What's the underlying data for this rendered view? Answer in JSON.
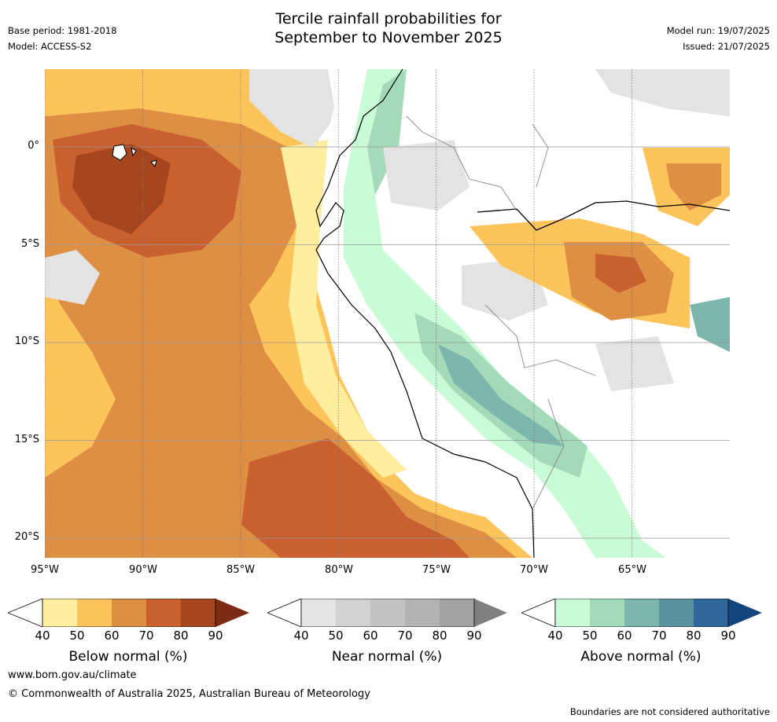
{
  "header": {
    "title_line1": "Tercile rainfall probabilities for",
    "title_line2": "September to November 2025",
    "base_period": "Base period: 1981-2018",
    "model": "Model: ACCESS-S2",
    "model_run": "Model run: 19/07/2025",
    "issued": "Issued: 21/07/2025"
  },
  "map": {
    "lat_labels": [
      "0°",
      "5°S",
      "10°S",
      "15°S",
      "20°S"
    ],
    "lon_labels": [
      "95°W",
      "90°W",
      "85°W",
      "80°W",
      "75°W",
      "70°W",
      "65°W"
    ],
    "extent": {
      "lon": [
        -95,
        -60
      ],
      "lat": [
        -21,
        4
      ]
    }
  },
  "colorbars": [
    {
      "name": "below",
      "title": "Below normal (%)",
      "ticks": [
        "40",
        "50",
        "60",
        "70",
        "80",
        "90"
      ],
      "colors": [
        "#ffeda0",
        "#fec45c",
        "#de8f43",
        "#c8602f",
        "#a5461f",
        "#7d2b14"
      ]
    },
    {
      "name": "near",
      "title": "Near normal (%)",
      "ticks": [
        "40",
        "50",
        "60",
        "70",
        "80",
        "90"
      ],
      "colors": [
        "#e3e3e3",
        "#d2d2d2",
        "#c2c2c2",
        "#b3b3b3",
        "#a3a3a3",
        "#808080"
      ]
    },
    {
      "name": "above",
      "title": "Above normal (%)",
      "ticks": [
        "40",
        "50",
        "60",
        "70",
        "80",
        "90"
      ],
      "colors": [
        "#c9fbd6",
        "#a4dab9",
        "#7db6ac",
        "#5b92a0",
        "#30669b",
        "#13467f"
      ]
    }
  ],
  "footer": {
    "url": "www.bom.gov.au/climate",
    "copyright": "© Commonwealth of Australia 2025, Australian Bureau of Meteorology",
    "note": "Boundaries are not considered authoritative"
  }
}
